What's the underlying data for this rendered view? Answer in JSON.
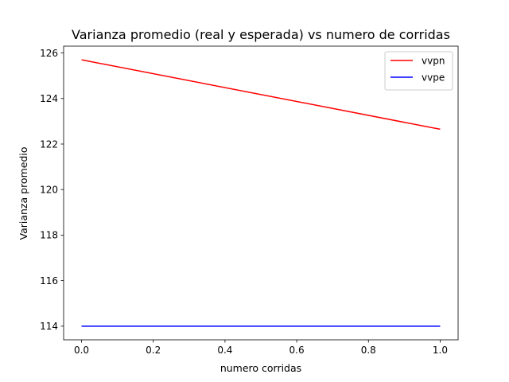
{
  "chart_data": {
    "type": "line",
    "title": "Varianza promedio (real y esperada) vs numero de corridas",
    "xlabel": "numero corridas",
    "ylabel": "Varianza promedio",
    "xlim": [
      -0.05,
      1.05
    ],
    "ylim": [
      113.4,
      126.3
    ],
    "xticks": [
      0.0,
      0.2,
      0.4,
      0.6,
      0.8,
      1.0
    ],
    "xtick_labels": [
      "0.0",
      "0.2",
      "0.4",
      "0.6",
      "0.8",
      "1.0"
    ],
    "yticks": [
      114,
      116,
      118,
      120,
      122,
      124,
      126
    ],
    "ytick_labels": [
      "114",
      "116",
      "118",
      "120",
      "122",
      "124",
      "126"
    ],
    "grid": false,
    "legend_position": "top-right",
    "series": [
      {
        "name": "vvpn",
        "color": "#ff0000",
        "x": [
          0.0,
          1.0
        ],
        "y": [
          125.7,
          122.65
        ]
      },
      {
        "name": "vvpe",
        "color": "#0000ff",
        "x": [
          0.0,
          1.0
        ],
        "y": [
          114.0,
          114.0
        ]
      }
    ]
  }
}
